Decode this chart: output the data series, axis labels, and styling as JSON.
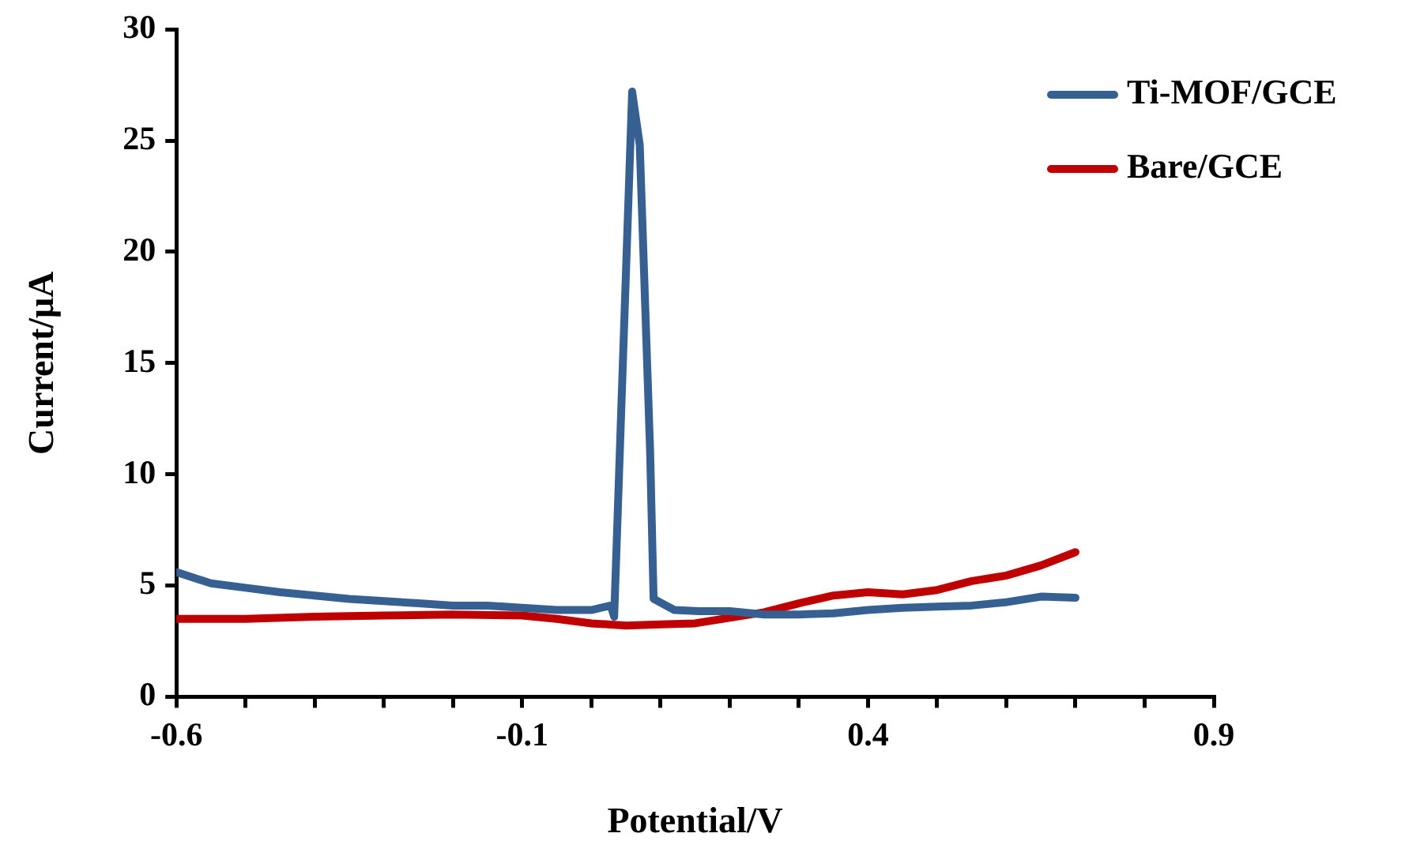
{
  "chart_data": {
    "type": "line",
    "xlabel": "Potential/V",
    "ylabel": "Current/μA",
    "xlim": [
      -0.6,
      0.9
    ],
    "xticks": [
      -0.6,
      {
        "value": -0.5,
        "label": null
      },
      {
        "value": -0.4,
        "label": null
      },
      {
        "value": -0.3,
        "label": null
      },
      {
        "value": -0.2,
        "label": null
      },
      -0.1,
      {
        "value": 0,
        "label": null
      },
      {
        "value": 0.1,
        "label": null
      },
      {
        "value": 0.2,
        "label": null
      },
      {
        "value": 0.3,
        "label": null
      },
      0.4,
      {
        "value": 0.5,
        "label": null
      },
      {
        "value": 0.6,
        "label": null
      },
      {
        "value": 0.7,
        "label": null
      },
      {
        "value": 0.8,
        "label": null
      },
      0.9
    ],
    "ylim": [
      0,
      30
    ],
    "yticks": [
      0,
      5,
      10,
      15,
      20,
      25,
      30
    ],
    "grid": false,
    "legend": "top right",
    "marker": "none",
    "line_style": "solid",
    "series": [
      {
        "name": "Ti-MOF/GCE",
        "color": "#376092",
        "x": [
          -0.6,
          -0.55,
          -0.5,
          -0.45,
          -0.4,
          -0.35,
          -0.3,
          -0.25,
          -0.2,
          -0.15,
          -0.1,
          -0.05,
          0,
          0.028,
          0.033,
          0.059,
          0.07,
          0.085,
          0.09,
          0.12,
          0.155,
          0.2,
          0.25,
          0.3,
          0.35,
          0.4,
          0.45,
          0.5,
          0.55,
          0.6,
          0.65,
          0.7
        ],
        "values": [
          5.6,
          5.1,
          4.9,
          4.7,
          4.55,
          4.4,
          4.3,
          4.2,
          4.1,
          4.1,
          4.0,
          3.9,
          3.9,
          4.1,
          3.6,
          27.2,
          24.8,
          11,
          4.4,
          3.9,
          3.85,
          3.85,
          3.7,
          3.7,
          3.75,
          3.9,
          4.0,
          4.05,
          4.1,
          4.25,
          4.5,
          4.45
        ]
      },
      {
        "name": "Bare/GCE",
        "color": "#c00000",
        "x": [
          -0.6,
          -0.5,
          -0.4,
          -0.3,
          -0.2,
          -0.1,
          -0.05,
          0,
          0.05,
          0.1,
          0.15,
          0.2,
          0.25,
          0.3,
          0.35,
          0.4,
          0.45,
          0.5,
          0.55,
          0.6,
          0.65,
          0.7
        ],
        "values": [
          3.5,
          3.5,
          3.6,
          3.65,
          3.7,
          3.65,
          3.5,
          3.3,
          3.2,
          3.25,
          3.3,
          3.55,
          3.8,
          4.2,
          4.55,
          4.7,
          4.6,
          4.8,
          5.2,
          5.45,
          5.9,
          6.5
        ]
      }
    ]
  }
}
